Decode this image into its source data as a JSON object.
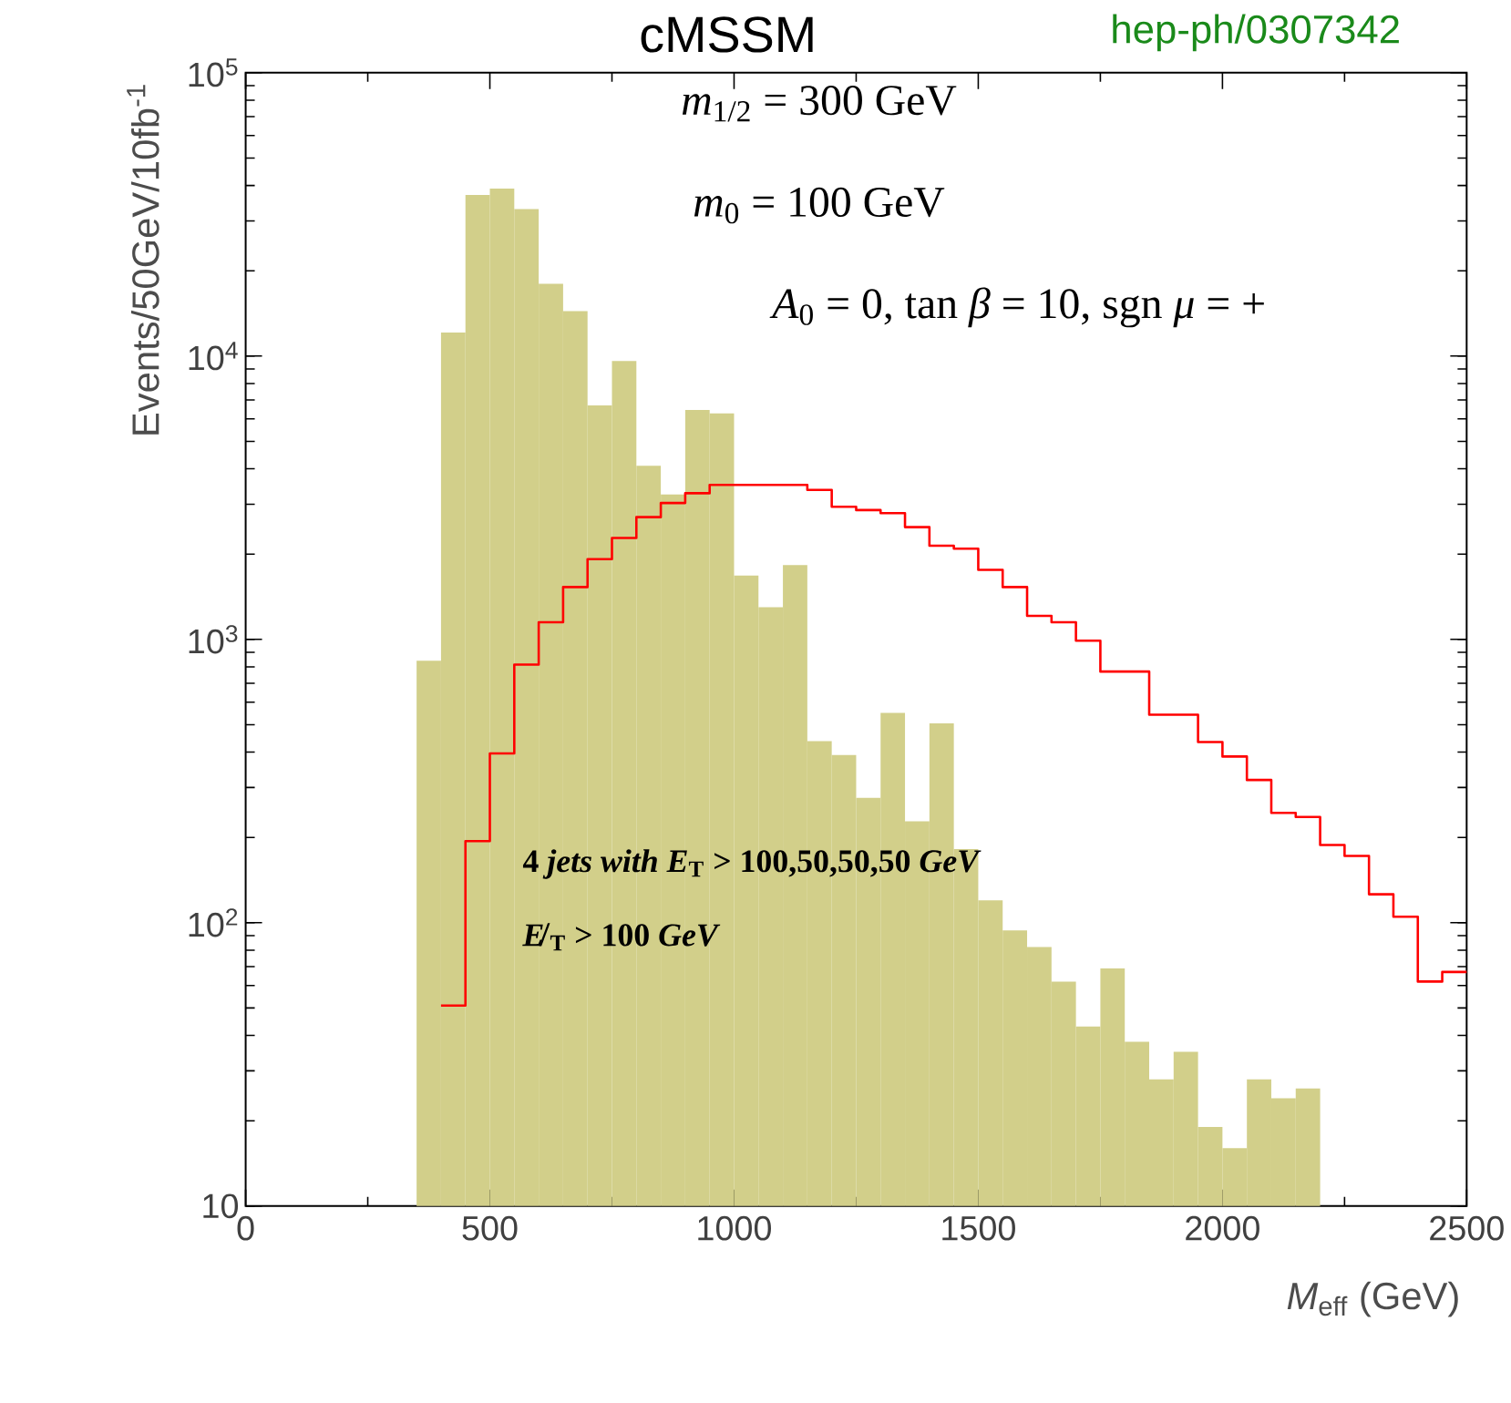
{
  "chart_data": {
    "type": "histogram",
    "title": "cMSSM",
    "xlabel": "*M*$_{eff}$ (GeV)",
    "ylabel": "Events/50GeV/10fb$^{-1}$",
    "annotations": [
      "hep-ph/0307342",
      "*m*$_{1/2}$ = 300 GeV",
      "*m*$_{0}$ = 100 GeV",
      "*A*$_{0}$ = 0,    tan *β* = 10,    sgn *μ* = +",
      "4 *jets with E*$_{T}$ > 100,50,50,50 *GeV*",
      "*E̸*$_{T}$ > 100 *GeV*"
    ],
    "log": "y",
    "xlim": [
      0,
      2500
    ],
    "ylim": [
      10,
      100000
    ],
    "xticks": [
      0,
      500,
      1000,
      1500,
      2000,
      2500
    ],
    "yticks": [
      10,
      {
        "value": 100,
        "label": "10$^{2}$"
      },
      {
        "value": 1000,
        "label": "10$^{3}$"
      },
      {
        "value": 10000,
        "label": "10$^{4}$"
      },
      {
        "value": 100000,
        "label": "10$^{5}$"
      }
    ],
    "bins": [
      350,
      400,
      450,
      500,
      550,
      600,
      650,
      700,
      750,
      800,
      850,
      900,
      950,
      1000,
      1050,
      1100,
      1150,
      1200,
      1250,
      1300,
      1350,
      1400,
      1450,
      1500,
      1550,
      1600,
      1650,
      1700,
      1750,
      1800,
      1850,
      1900,
      1950,
      2000,
      2050,
      2100,
      2150,
      2200
    ],
    "series": [
      {
        "color": "#d2cf8a",
        "values": [
          840,
          12100,
          37000,
          39000,
          33000,
          18000,
          14400,
          6700,
          9600,
          4100,
          3250,
          6450,
          6280,
          1680,
          1300,
          1830,
          437,
          391,
          276,
          550,
          228,
          505,
          182,
          120,
          94,
          82,
          62,
          43,
          69,
          38,
          28,
          35,
          19,
          16,
          28,
          24,
          26
        ]
      },
      {
        "type": "step",
        "color": "#ff0000",
        "x": [
          400,
          450,
          500,
          550,
          600,
          650,
          700,
          750,
          800,
          850,
          900,
          950,
          1000,
          1050,
          1100,
          1150,
          1200,
          1250,
          1300,
          1350,
          1400,
          1450,
          1500,
          1550,
          1600,
          1650,
          1700,
          1750,
          1800,
          1850,
          1900,
          1950,
          2000,
          2050,
          2100,
          2150,
          2200,
          2250,
          2300,
          2350,
          2400,
          2450,
          2500
        ],
        "values": [
          51,
          194,
          396,
          815,
          1150,
          1530,
          1920,
          2280,
          2700,
          3030,
          3280,
          3510,
          3510,
          3510,
          3510,
          3370,
          2940,
          2860,
          2790,
          2490,
          2140,
          2090,
          1760,
          1530,
          1210,
          1150,
          990,
          770,
          770,
          542,
          542,
          434,
          386,
          319,
          244,
          236,
          188,
          172,
          126,
          105,
          62,
          67,
          67
        ]
      }
    ]
  }
}
